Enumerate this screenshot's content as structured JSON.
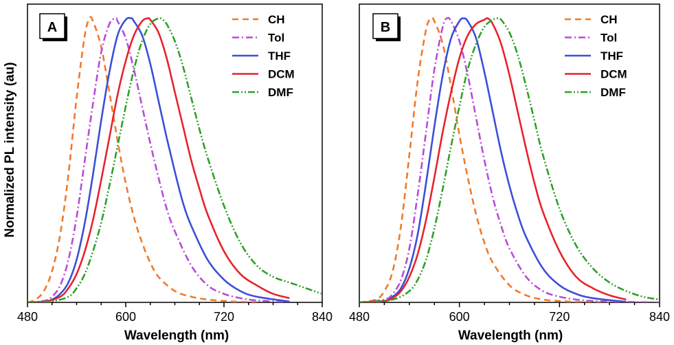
{
  "chart_data": [
    {
      "type": "line",
      "panel_label": "A",
      "ylabel": "Normalized PL intensity (au)",
      "xlabel": "Wavelength (nm)",
      "xlim": [
        480,
        840
      ],
      "ylim": [
        0,
        1.05
      ],
      "xticks": [
        480,
        600,
        720,
        840
      ],
      "grid": false,
      "legend_position": "top-right",
      "series": [
        {
          "name": "CH",
          "color": "#f07a2a",
          "dash": "dash",
          "x": [
            480,
            490,
            500,
            510,
            520,
            530,
            540,
            550,
            556,
            560,
            570,
            580,
            590,
            600,
            610,
            620,
            630,
            640,
            660,
            680,
            700,
            720,
            740,
            760
          ],
          "y": [
            0,
            0.01,
            0.04,
            0.11,
            0.24,
            0.45,
            0.72,
            0.94,
            1.0,
            0.99,
            0.9,
            0.74,
            0.57,
            0.42,
            0.3,
            0.21,
            0.14,
            0.09,
            0.04,
            0.02,
            0.01,
            0.005,
            0.002,
            0.001
          ]
        },
        {
          "name": "Tol",
          "color": "#b84bd8",
          "dash": "dashdot",
          "x": [
            480,
            500,
            510,
            520,
            530,
            540,
            550,
            560,
            570,
            580,
            588,
            590,
            600,
            610,
            620,
            630,
            640,
            650,
            660,
            680,
            700,
            720,
            740,
            760,
            800
          ],
          "y": [
            0,
            0.005,
            0.02,
            0.06,
            0.15,
            0.3,
            0.5,
            0.7,
            0.88,
            0.98,
            1.0,
            0.99,
            0.93,
            0.82,
            0.69,
            0.56,
            0.44,
            0.33,
            0.25,
            0.13,
            0.06,
            0.03,
            0.015,
            0.007,
            0.001
          ]
        },
        {
          "name": "THF",
          "color": "#3a4fd8",
          "dash": "solid",
          "x": [
            480,
            500,
            510,
            520,
            530,
            540,
            550,
            560,
            570,
            580,
            590,
            600,
            607,
            610,
            620,
            630,
            640,
            650,
            660,
            670,
            680,
            700,
            720,
            740,
            760,
            800
          ],
          "y": [
            0,
            0.003,
            0.01,
            0.03,
            0.07,
            0.15,
            0.28,
            0.45,
            0.64,
            0.81,
            0.94,
            0.995,
            1.0,
            0.99,
            0.94,
            0.84,
            0.71,
            0.58,
            0.46,
            0.35,
            0.27,
            0.15,
            0.08,
            0.04,
            0.02,
            0.003
          ]
        },
        {
          "name": "DCM",
          "color": "#e8222b",
          "dash": "solid",
          "x": [
            480,
            500,
            520,
            530,
            540,
            550,
            560,
            570,
            580,
            590,
            600,
            610,
            620,
            627,
            630,
            640,
            650,
            660,
            670,
            680,
            690,
            700,
            720,
            740,
            760,
            780,
            800
          ],
          "y": [
            0,
            0.002,
            0.02,
            0.05,
            0.1,
            0.18,
            0.29,
            0.43,
            0.58,
            0.73,
            0.85,
            0.94,
            0.99,
            1.0,
            0.995,
            0.95,
            0.86,
            0.74,
            0.62,
            0.5,
            0.4,
            0.31,
            0.18,
            0.1,
            0.06,
            0.03,
            0.015
          ]
        },
        {
          "name": "DMF",
          "color": "#2ea028",
          "dash": "dashdotdot",
          "x": [
            480,
            510,
            530,
            540,
            550,
            560,
            570,
            580,
            590,
            600,
            610,
            620,
            630,
            640,
            645,
            650,
            660,
            670,
            680,
            690,
            700,
            720,
            740,
            760,
            780,
            800,
            820,
            840
          ],
          "y": [
            0,
            0.004,
            0.02,
            0.05,
            0.1,
            0.18,
            0.28,
            0.41,
            0.55,
            0.69,
            0.82,
            0.92,
            0.98,
            1.0,
            0.995,
            0.98,
            0.92,
            0.83,
            0.72,
            0.61,
            0.51,
            0.34,
            0.21,
            0.13,
            0.09,
            0.07,
            0.05,
            0.03
          ]
        }
      ]
    },
    {
      "type": "line",
      "panel_label": "B",
      "xlabel": "Wavelength (nm)",
      "xlim": [
        480,
        840
      ],
      "ylim": [
        0,
        1.05
      ],
      "xticks": [
        480,
        600,
        720,
        840
      ],
      "grid": false,
      "legend_position": "top-right",
      "series": [
        {
          "name": "CH",
          "color": "#f07a2a",
          "dash": "dash",
          "x": [
            480,
            500,
            510,
            520,
            530,
            540,
            550,
            560,
            566,
            570,
            580,
            590,
            600,
            610,
            620,
            630,
            640,
            660,
            680,
            700,
            720,
            740,
            760,
            780
          ],
          "y": [
            0,
            0.01,
            0.04,
            0.11,
            0.27,
            0.52,
            0.78,
            0.96,
            1.0,
            0.99,
            0.91,
            0.76,
            0.59,
            0.44,
            0.31,
            0.21,
            0.14,
            0.06,
            0.025,
            0.01,
            0.005,
            0.002,
            0.001,
            0
          ]
        },
        {
          "name": "Tol",
          "color": "#b84bd8",
          "dash": "dashdot",
          "x": [
            480,
            510,
            520,
            530,
            540,
            550,
            560,
            570,
            580,
            585,
            590,
            600,
            610,
            620,
            630,
            640,
            650,
            660,
            680,
            700,
            720,
            740,
            760,
            800,
            840
          ],
          "y": [
            0,
            0.01,
            0.03,
            0.08,
            0.19,
            0.38,
            0.6,
            0.82,
            0.97,
            1.0,
            0.99,
            0.92,
            0.8,
            0.65,
            0.5,
            0.37,
            0.27,
            0.19,
            0.09,
            0.04,
            0.02,
            0.01,
            0.005,
            0.002,
            0
          ]
        },
        {
          "name": "THF",
          "color": "#3a4fd8",
          "dash": "solid",
          "x": [
            480,
            510,
            520,
            530,
            540,
            550,
            560,
            570,
            580,
            590,
            600,
            605,
            610,
            620,
            630,
            640,
            650,
            660,
            670,
            680,
            700,
            720,
            740,
            760,
            800
          ],
          "y": [
            0,
            0.005,
            0.02,
            0.05,
            0.12,
            0.24,
            0.42,
            0.62,
            0.8,
            0.93,
            0.99,
            1.0,
            0.99,
            0.93,
            0.81,
            0.67,
            0.53,
            0.41,
            0.31,
            0.23,
            0.12,
            0.06,
            0.03,
            0.015,
            0.002
          ]
        },
        {
          "name": "DCM",
          "color": "#e8222b",
          "dash": "solid",
          "x": [
            480,
            510,
            520,
            530,
            540,
            550,
            560,
            570,
            580,
            590,
            600,
            610,
            620,
            630,
            634,
            640,
            650,
            660,
            670,
            680,
            690,
            700,
            720,
            740,
            760,
            780,
            800
          ],
          "y": [
            0,
            0.005,
            0.015,
            0.04,
            0.09,
            0.17,
            0.29,
            0.44,
            0.6,
            0.74,
            0.86,
            0.94,
            0.98,
            0.995,
            1.0,
            0.98,
            0.91,
            0.8,
            0.67,
            0.54,
            0.42,
            0.32,
            0.18,
            0.09,
            0.05,
            0.025,
            0.01
          ]
        },
        {
          "name": "DMF",
          "color": "#2ea028",
          "dash": "dashdotdot",
          "x": [
            480,
            520,
            540,
            550,
            560,
            570,
            580,
            590,
            600,
            610,
            620,
            630,
            640,
            646,
            650,
            660,
            670,
            680,
            690,
            700,
            720,
            740,
            760,
            780,
            800,
            820,
            840
          ],
          "y": [
            0,
            0.01,
            0.04,
            0.08,
            0.15,
            0.26,
            0.4,
            0.55,
            0.69,
            0.82,
            0.91,
            0.97,
            0.995,
            1.0,
            0.995,
            0.95,
            0.87,
            0.76,
            0.64,
            0.52,
            0.33,
            0.2,
            0.12,
            0.07,
            0.04,
            0.02,
            0.01
          ]
        }
      ]
    }
  ]
}
